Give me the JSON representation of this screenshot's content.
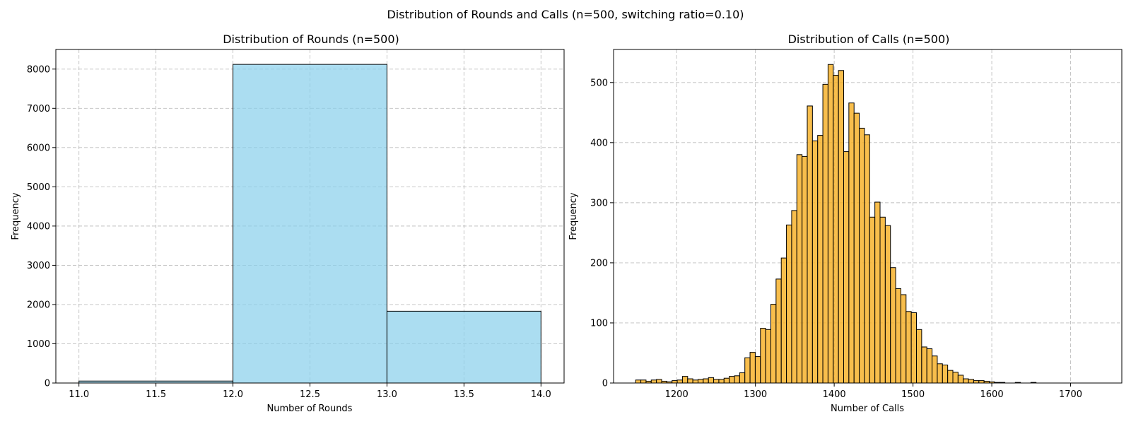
{
  "figure": {
    "suptitle": "Distribution of Rounds and Calls (n=500, switching ratio=0.10)"
  },
  "chart_data": [
    {
      "type": "bar",
      "subtype": "histogram",
      "title": "Distribution of Rounds (n=500)",
      "xlabel": "Number of Rounds",
      "ylabel": "Frequency",
      "xlim": [
        10.85,
        14.15
      ],
      "ylim": [
        0,
        8500
      ],
      "xticks": [
        11.0,
        11.5,
        12.0,
        12.5,
        13.0,
        13.5,
        14.0
      ],
      "xtick_labels": [
        "11.0",
        "11.5",
        "12.0",
        "12.5",
        "13.0",
        "13.5",
        "14.0"
      ],
      "yticks": [
        0,
        1000,
        2000,
        3000,
        4000,
        5000,
        6000,
        7000,
        8000
      ],
      "ytick_labels": [
        "0",
        "1000",
        "2000",
        "3000",
        "4000",
        "5000",
        "6000",
        "7000",
        "8000"
      ],
      "bin_edges": [
        11,
        12,
        13,
        14
      ],
      "values": [
        50,
        8120,
        1830
      ],
      "color": "#87ceeb",
      "edge_color": "#000000",
      "grid": true
    },
    {
      "type": "bar",
      "subtype": "histogram",
      "title": "Distribution of Calls (n=500)",
      "xlabel": "Number of Calls",
      "ylabel": "Frequency",
      "xlim": [
        1120,
        1765
      ],
      "ylim": [
        0,
        555
      ],
      "xticks": [
        1200,
        1300,
        1400,
        1500,
        1600,
        1700
      ],
      "xtick_labels": [
        "1200",
        "1300",
        "1400",
        "1500",
        "1600",
        "1700"
      ],
      "yticks": [
        0,
        100,
        200,
        300,
        400,
        500
      ],
      "ytick_labels": [
        "0",
        "100",
        "200",
        "300",
        "400",
        "500"
      ],
      "bin_start": 1148,
      "bin_width": 6.6,
      "values": [
        5,
        5,
        3,
        5,
        6,
        3,
        2,
        4,
        5,
        11,
        7,
        5,
        6,
        7,
        9,
        6,
        6,
        8,
        11,
        12,
        17,
        42,
        51,
        44,
        91,
        89,
        131,
        173,
        208,
        263,
        287,
        380,
        377,
        461,
        403,
        412,
        497,
        530,
        512,
        520,
        385,
        466,
        449,
        424,
        413,
        276,
        301,
        276,
        262,
        192,
        157,
        147,
        119,
        117,
        89,
        60,
        57,
        45,
        32,
        30,
        21,
        18,
        13,
        7,
        6,
        4,
        4,
        3,
        2,
        1,
        1,
        0,
        0,
        1,
        0,
        0,
        1,
        0,
        0
      ],
      "color": "#f6ae1f",
      "edge_color": "#000000",
      "grid": true
    }
  ]
}
